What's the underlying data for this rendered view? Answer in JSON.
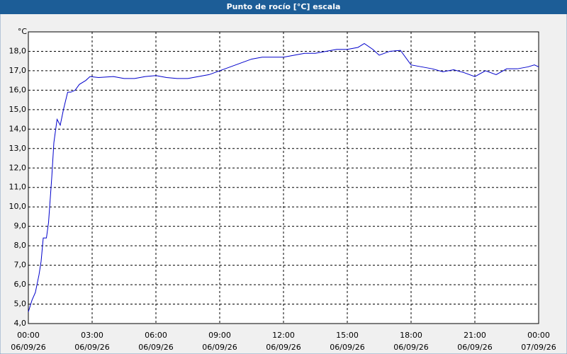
{
  "chart_data": {
    "type": "line",
    "title": "Punto de rocío [°C] escala",
    "y_unit": "°C",
    "x": [
      0,
      0.17,
      0.33,
      0.5,
      0.6,
      0.7,
      0.85,
      0.95,
      1.1,
      1.2,
      1.35,
      1.5,
      1.65,
      1.85,
      2.0,
      2.2,
      2.4,
      2.7,
      2.9,
      3.3,
      4,
      4.5,
      5,
      5.5,
      6,
      6.5,
      7,
      7.5,
      8,
      8.5,
      9,
      9.5,
      10,
      10.5,
      11,
      11.5,
      12,
      12.5,
      13,
      13.5,
      14,
      14.5,
      15,
      15.5,
      15.8,
      16.2,
      16.5,
      17,
      17.5,
      18,
      18.5,
      19,
      19.5,
      20,
      20.5,
      21,
      21.5,
      22,
      22.5,
      23,
      23.5,
      23.8,
      24
    ],
    "series": [
      {
        "color": "#0000cc",
        "values": [
          4.6,
          5.2,
          5.6,
          6.5,
          7.2,
          8.4,
          8.4,
          9.2,
          11.5,
          13.3,
          14.5,
          14.2,
          15.0,
          15.9,
          15.9,
          16.0,
          16.3,
          16.5,
          16.7,
          16.65,
          16.7,
          16.6,
          16.6,
          16.7,
          16.75,
          16.65,
          16.6,
          16.6,
          16.7,
          16.8,
          17.0,
          17.2,
          17.4,
          17.6,
          17.7,
          17.7,
          17.7,
          17.8,
          17.9,
          17.9,
          18.0,
          18.1,
          18.1,
          18.2,
          18.4,
          18.1,
          17.8,
          18.0,
          18.05,
          17.3,
          17.2,
          17.1,
          16.95,
          17.05,
          16.9,
          16.7,
          17.0,
          16.8,
          17.1,
          17.1,
          17.2,
          17.3,
          17.2
        ]
      }
    ],
    "xlim": [
      0,
      24
    ],
    "xticks": [
      {
        "value": 0,
        "label": "00:00"
      },
      {
        "value": 3,
        "label": "03:00"
      },
      {
        "value": 6,
        "label": "06:00"
      },
      {
        "value": 9,
        "label": "09:00"
      },
      {
        "value": 12,
        "label": "12:00"
      },
      {
        "value": 15,
        "label": "15:00"
      },
      {
        "value": 18,
        "label": "18:00"
      },
      {
        "value": 21,
        "label": "21:00"
      },
      {
        "value": 24,
        "label": "00:00"
      }
    ],
    "xtick_dates": [
      "06/09/26",
      "06/09/26",
      "06/09/26",
      "06/09/26",
      "06/09/26",
      "06/09/26",
      "06/09/26",
      "06/09/26",
      "07/09/26"
    ],
    "ylim": [
      4,
      19
    ],
    "yticks": [
      {
        "value": 4,
        "label": "4,0"
      },
      {
        "value": 5,
        "label": "5,0"
      },
      {
        "value": 6,
        "label": "6,0"
      },
      {
        "value": 7,
        "label": "7,0"
      },
      {
        "value": 8,
        "label": "8,0"
      },
      {
        "value": 9,
        "label": "9,0"
      },
      {
        "value": 10,
        "label": "10,0"
      },
      {
        "value": 11,
        "label": "11,0"
      },
      {
        "value": 12,
        "label": "12,0"
      },
      {
        "value": 13,
        "label": "13,0"
      },
      {
        "value": 14,
        "label": "14,0"
      },
      {
        "value": 15,
        "label": "15,0"
      },
      {
        "value": 16,
        "label": "16,0"
      },
      {
        "value": 17,
        "label": "17,0"
      },
      {
        "value": 18,
        "label": "18,0"
      }
    ],
    "grid": true
  }
}
